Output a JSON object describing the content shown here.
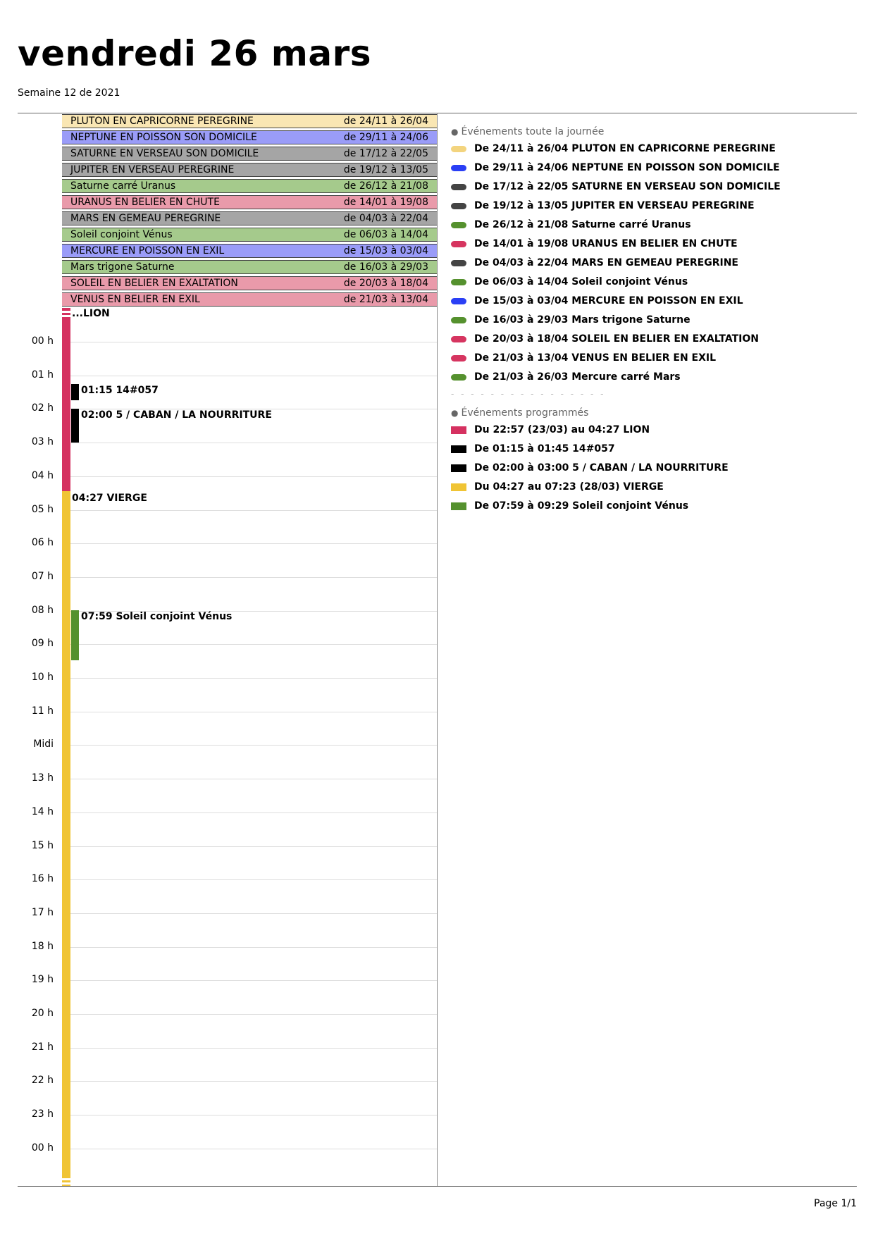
{
  "header": {
    "title": "vendredi 26 mars",
    "subtitle": "Semaine 12 de 2021"
  },
  "colors": {
    "yellow_light": "#f9e6b3",
    "blue": "#9a9cf8",
    "gray": "#a5a5a5",
    "green": "#a5ca8c",
    "pink": "#e99aaa",
    "pill_yellow": "#f3d47e",
    "pill_blue": "#2a3ff5",
    "pill_dark": "#444444",
    "pill_green": "#55912e",
    "pill_red": "#d63560",
    "event_red": "#d53160",
    "event_black": "#000000",
    "event_yellow": "#f0c434",
    "event_green": "#55912e"
  },
  "allday_bars": [
    {
      "name": "PLUTON EN CAPRICORNE PEREGRINE",
      "dates": "de 24/11 à 26/04",
      "color": "#f9e6b3"
    },
    {
      "name": "NEPTUNE EN POISSON SON DOMICILE",
      "dates": "de 29/11 à 24/06",
      "color": "#9a9cf8"
    },
    {
      "name": "SATURNE EN VERSEAU SON DOMICILE",
      "dates": "de 17/12 à 22/05",
      "color": "#a5a5a5"
    },
    {
      "name": "JUPITER EN VERSEAU PEREGRINE",
      "dates": "de 19/12 à 13/05",
      "color": "#a5a5a5"
    },
    {
      "name": "Saturne carré Uranus",
      "dates": "de 26/12 à 21/08",
      "color": "#a5ca8c"
    },
    {
      "name": "URANUS EN BELIER EN CHUTE",
      "dates": "de 14/01 à 19/08",
      "color": "#e99aaa"
    },
    {
      "name": "MARS EN GEMEAU PEREGRINE",
      "dates": "de 04/03 à 22/04",
      "color": "#a5a5a5"
    },
    {
      "name": "Soleil conjoint Vénus",
      "dates": "de 06/03 à 14/04",
      "color": "#a5ca8c"
    },
    {
      "name": "MERCURE EN POISSON EN EXIL",
      "dates": "de 15/03 à 03/04",
      "color": "#9a9cf8"
    },
    {
      "name": "Mars trigone Saturne",
      "dates": "de 16/03 à 29/03",
      "color": "#a5ca8c"
    },
    {
      "name": "SOLEIL EN BELIER EN EXALTATION",
      "dates": "de 20/03 à 18/04",
      "color": "#e99aaa"
    },
    {
      "name": "VENUS EN BELIER EN EXIL",
      "dates": "de 21/03 à 13/04",
      "color": "#e99aaa"
    }
  ],
  "hours": [
    "00 h",
    "01 h",
    "02 h",
    "03 h",
    "04 h",
    "05 h",
    "06 h",
    "07 h",
    "08 h",
    "09 h",
    "10 h",
    "11 h",
    "Midi",
    "13 h",
    "14 h",
    "15 h",
    "16 h",
    "17 h",
    "18 h",
    "19 h",
    "20 h",
    "21 h",
    "22 h",
    "23 h",
    "00 h"
  ],
  "timeline": {
    "lion_label": "...LION",
    "events": [
      {
        "label": "01:15 14#057",
        "start": 1.25,
        "end": 1.75,
        "color": "#000000"
      },
      {
        "label": "02:00 5 / CABAN / LA NOURRITURE",
        "start": 2.0,
        "end": 3.0,
        "color": "#000000"
      },
      {
        "label": "07:59 Soleil conjoint Vénus",
        "start": 7.98,
        "end": 9.48,
        "color": "#55912e"
      }
    ],
    "strip": [
      {
        "label": "04:27 VIERGE",
        "start": 4.45,
        "end": 24,
        "color": "#f0c434"
      }
    ]
  },
  "legend": {
    "allday_title": "Événements toute la journée",
    "allday_items": [
      {
        "text": "De 24/11 à 26/04 PLUTON EN CAPRICORNE PEREGRINE",
        "color": "#f3d47e"
      },
      {
        "text": "De 29/11 à 24/06 NEPTUNE EN POISSON SON DOMICILE",
        "color": "#2a3ff5"
      },
      {
        "text": "De 17/12 à 22/05 SATURNE EN VERSEAU SON DOMICILE",
        "color": "#444444"
      },
      {
        "text": "De 19/12 à 13/05 JUPITER EN VERSEAU PEREGRINE",
        "color": "#444444"
      },
      {
        "text": "De 26/12 à 21/08 Saturne carré Uranus",
        "color": "#55912e"
      },
      {
        "text": "De 14/01 à 19/08 URANUS EN BELIER EN CHUTE",
        "color": "#d63560"
      },
      {
        "text": "De 04/03 à 22/04 MARS EN GEMEAU PEREGRINE",
        "color": "#444444"
      },
      {
        "text": "De 06/03 à 14/04 Soleil conjoint Vénus",
        "color": "#55912e"
      },
      {
        "text": "De 15/03 à 03/04 MERCURE EN POISSON EN EXIL",
        "color": "#2a3ff5"
      },
      {
        "text": "De 16/03 à 29/03 Mars trigone Saturne",
        "color": "#55912e"
      },
      {
        "text": "De 20/03 à 18/04 SOLEIL EN BELIER EN EXALTATION",
        "color": "#d63560"
      },
      {
        "text": "De 21/03 à 13/04 VENUS EN BELIER EN EXIL",
        "color": "#d63560"
      },
      {
        "text": "De 21/03 à 26/03 Mercure carré Mars",
        "color": "#55912e"
      }
    ],
    "scheduled_title": "Événements programmés",
    "scheduled_items": [
      {
        "text": "Du 22:57 (23/03) au 04:27 LION",
        "color": "#d53160"
      },
      {
        "text": "De 01:15 à 01:45 14#057",
        "color": "#000000"
      },
      {
        "text": "De 02:00 à 03:00 5 / CABAN / LA NOURRITURE",
        "color": "#000000"
      },
      {
        "text": "Du 04:27 au 07:23 (28/03) VIERGE",
        "color": "#f0c434"
      },
      {
        "text": "De 07:59 à 09:29 Soleil conjoint Vénus",
        "color": "#55912e"
      }
    ]
  },
  "footer": {
    "page": "Page 1/1"
  }
}
